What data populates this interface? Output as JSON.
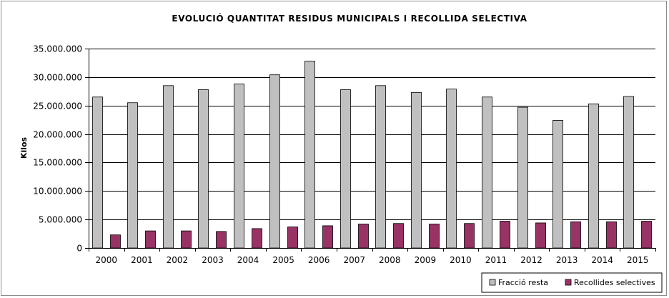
{
  "chart_data": {
    "type": "bar",
    "title": "EVOLUCIÓ QUANTITAT RESIDUS MUNICIPALS I RECOLLIDA SELECTIVA",
    "xlabel": "",
    "ylabel": "Kilos",
    "ylim": [
      0,
      35000000
    ],
    "yticks": [
      "0",
      "5.000.000",
      "10.000.000",
      "15.000.000",
      "20.000.000",
      "25.000.000",
      "30.000.000",
      "35.000.000"
    ],
    "grid": true,
    "legend_position": "bottom-right",
    "categories": [
      "2000",
      "2001",
      "2002",
      "2003",
      "2004",
      "2005",
      "2006",
      "2007",
      "2008",
      "2009",
      "2010",
      "2011",
      "2012",
      "2013",
      "2014",
      "2015"
    ],
    "series": [
      {
        "name": "Fracció resta",
        "color": "#c0c0c0",
        "values": [
          26500000,
          25500000,
          28500000,
          27800000,
          28800000,
          30400000,
          32800000,
          27800000,
          28500000,
          27300000,
          27900000,
          26500000,
          24700000,
          22400000,
          25300000,
          26600000
        ]
      },
      {
        "name": "Recollides selectives",
        "color": "#993366",
        "values": [
          2300000,
          3000000,
          3000000,
          2900000,
          3400000,
          3700000,
          3900000,
          4200000,
          4300000,
          4200000,
          4300000,
          4700000,
          4400000,
          4600000,
          4600000,
          4700000
        ]
      }
    ]
  }
}
